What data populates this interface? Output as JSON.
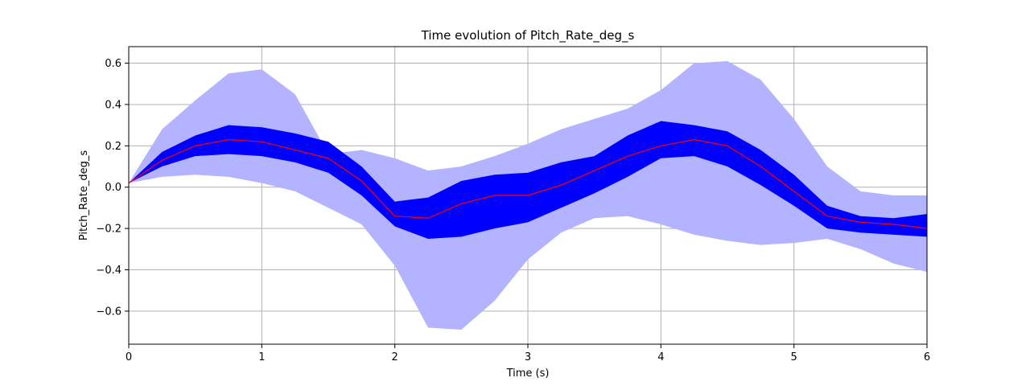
{
  "chart_data": {
    "type": "area",
    "title": "Time evolution of Pitch_Rate_deg_s",
    "xlabel": "Time (s)",
    "ylabel": "Pitch_Rate_deg_s",
    "xlim": [
      0,
      6
    ],
    "ylim": [
      -0.76,
      0.68
    ],
    "xticks": [
      0,
      1,
      2,
      3,
      4,
      5,
      6
    ],
    "xtick_labels": [
      "0",
      "1",
      "2",
      "3",
      "4",
      "5",
      "6"
    ],
    "yticks": [
      -0.6,
      -0.4,
      -0.2,
      0.0,
      0.2,
      0.4,
      0.6
    ],
    "ytick_labels": [
      "−0.6",
      "−0.4",
      "−0.2",
      "0.0",
      "0.2",
      "0.4",
      "0.6"
    ],
    "grid": true,
    "colors": {
      "outer_band": "#b3b3ff",
      "inner_band": "#0000ff",
      "mean_line": "#ff0000"
    },
    "x": [
      0,
      0.25,
      0.5,
      0.75,
      1.0,
      1.25,
      1.5,
      1.75,
      2.0,
      2.25,
      2.5,
      2.75,
      3.0,
      3.25,
      3.5,
      3.75,
      4.0,
      4.25,
      4.5,
      4.75,
      5.0,
      5.25,
      5.5,
      5.75,
      6.0
    ],
    "series": [
      {
        "kind": "band",
        "role": "outer",
        "lower": [
          0.02,
          0.05,
          0.06,
          0.05,
          0.02,
          -0.02,
          -0.1,
          -0.18,
          -0.38,
          -0.68,
          -0.69,
          -0.55,
          -0.35,
          -0.22,
          -0.15,
          -0.14,
          -0.18,
          -0.23,
          -0.26,
          -0.28,
          -0.27,
          -0.25,
          -0.3,
          -0.37,
          -0.41
        ],
        "upper": [
          0.02,
          0.28,
          0.42,
          0.55,
          0.57,
          0.45,
          0.16,
          0.18,
          0.14,
          0.08,
          0.1,
          0.15,
          0.21,
          0.28,
          0.33,
          0.38,
          0.47,
          0.6,
          0.61,
          0.52,
          0.33,
          0.1,
          -0.02,
          -0.04,
          -0.04
        ]
      },
      {
        "kind": "band",
        "role": "inner",
        "lower": [
          0.02,
          0.1,
          0.15,
          0.16,
          0.15,
          0.12,
          0.07,
          -0.04,
          -0.19,
          -0.25,
          -0.24,
          -0.2,
          -0.17,
          -0.1,
          -0.03,
          0.05,
          0.14,
          0.15,
          0.1,
          0.01,
          -0.09,
          -0.2,
          -0.22,
          -0.23,
          -0.24
        ],
        "upper": [
          0.02,
          0.17,
          0.25,
          0.3,
          0.29,
          0.26,
          0.22,
          0.1,
          -0.07,
          -0.05,
          0.03,
          0.06,
          0.07,
          0.12,
          0.15,
          0.25,
          0.32,
          0.3,
          0.27,
          0.18,
          0.06,
          -0.09,
          -0.14,
          -0.15,
          -0.13
        ]
      },
      {
        "kind": "line",
        "role": "mean",
        "values": [
          0.02,
          0.13,
          0.2,
          0.23,
          0.22,
          0.18,
          0.14,
          0.03,
          -0.14,
          -0.15,
          -0.08,
          -0.04,
          -0.04,
          0.01,
          0.08,
          0.15,
          0.2,
          0.23,
          0.2,
          0.1,
          -0.02,
          -0.14,
          -0.17,
          -0.18,
          -0.2
        ]
      }
    ]
  }
}
